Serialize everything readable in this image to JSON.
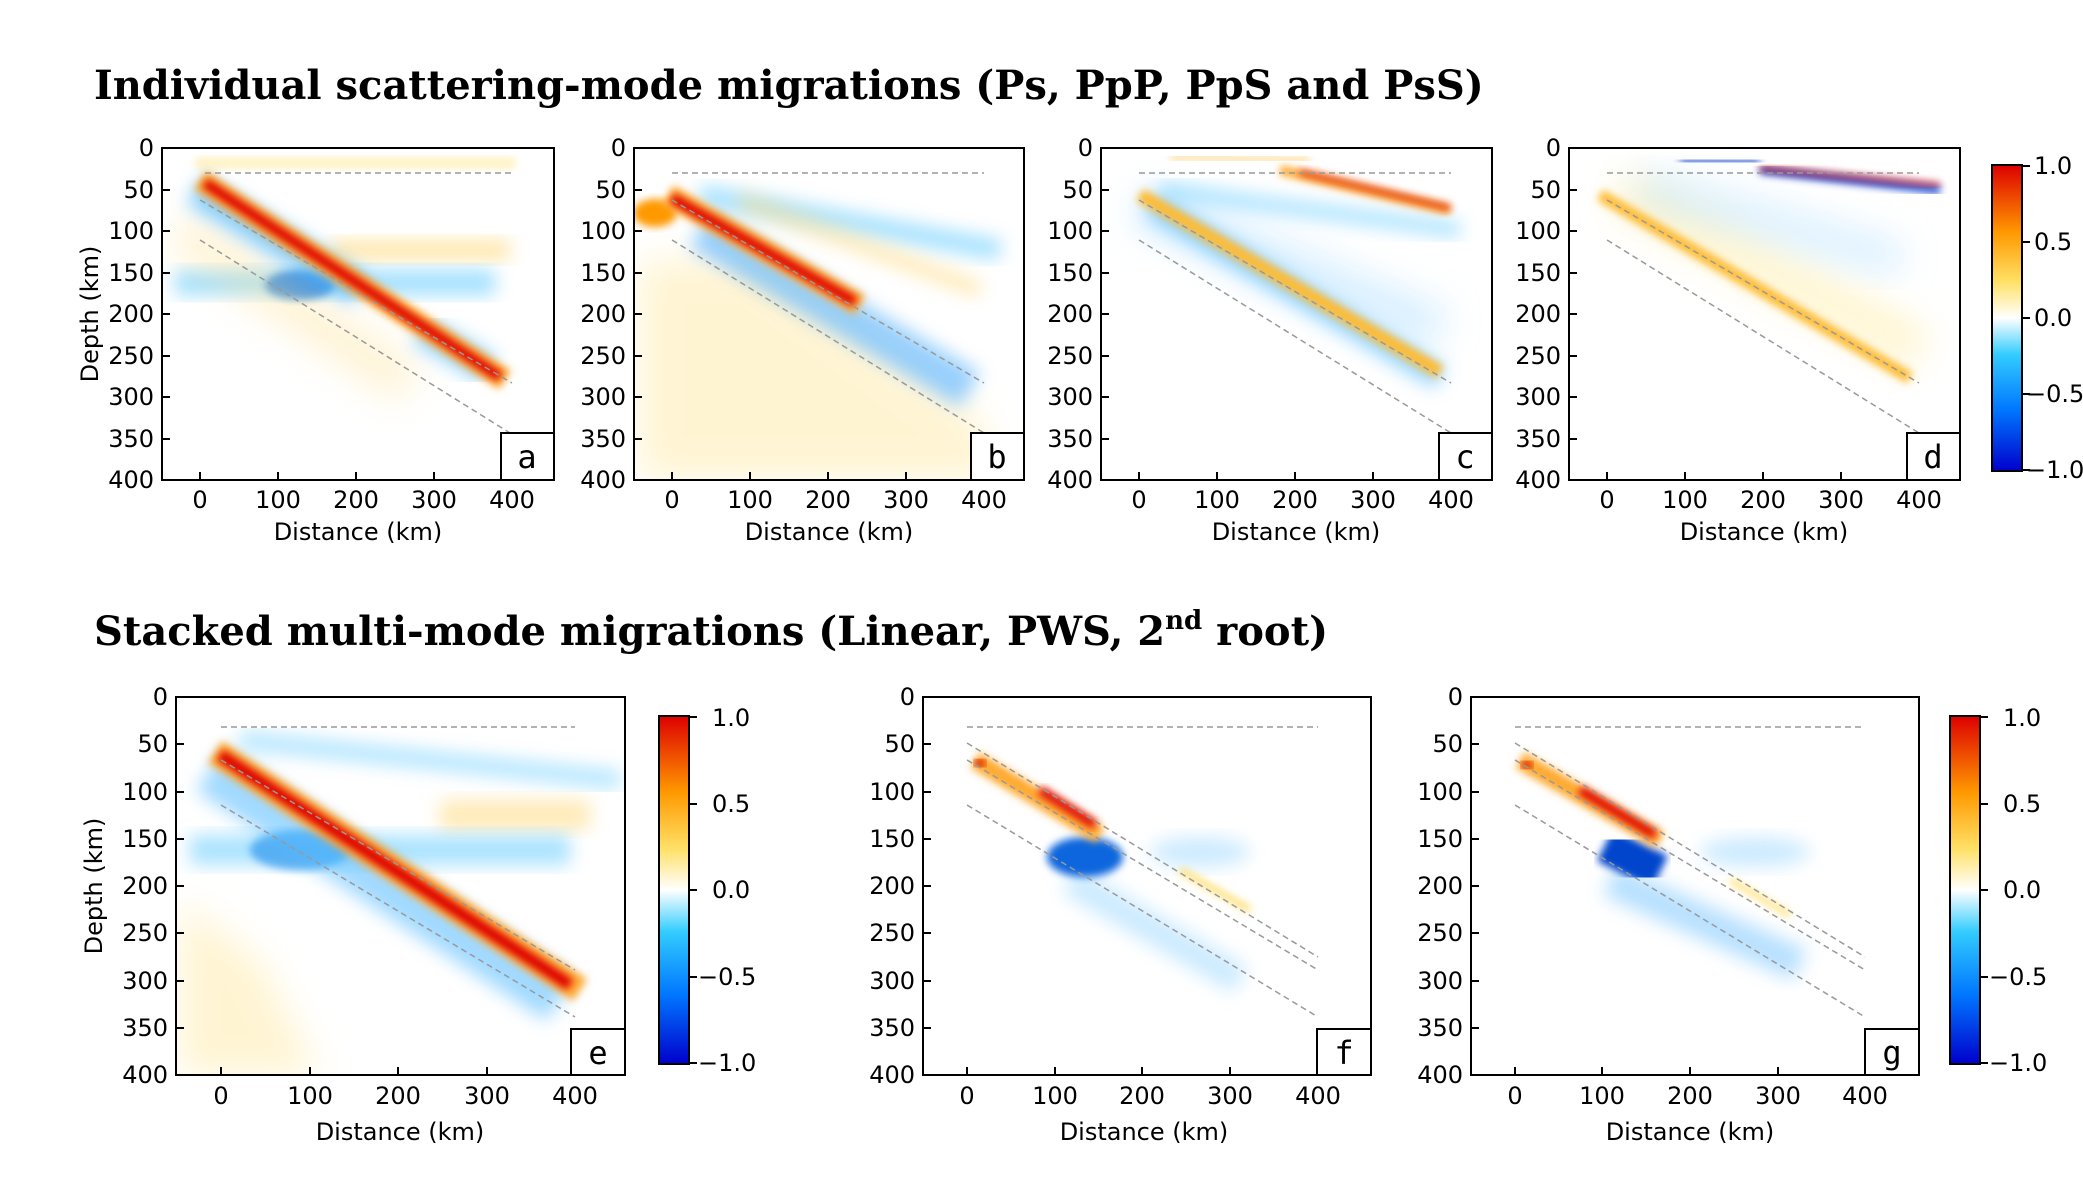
{
  "titles": {
    "top": "Individual scattering-mode migrations (Ps, PpP, PpS and PsS)",
    "bottom_pre": "Stacked multi-mode migrations (Linear, PWS, 2",
    "bottom_sup": "nd",
    "bottom_post": " root)"
  },
  "axis_labels": {
    "x": "Distance (km)",
    "y": "Depth (km)"
  },
  "colorbar": {
    "ticks": [
      "1.0",
      "0.5",
      "0.0",
      "−0.5",
      "−1.0"
    ],
    "range": [
      -1.0,
      1.0
    ],
    "colormap": [
      "#0000cc",
      "#0077ff",
      "#33ccff",
      "#ffffff",
      "#ffe066",
      "#ff9900",
      "#dd0000"
    ]
  },
  "chart_data": [
    {
      "type": "heatmap",
      "label": "a",
      "x_ticks": [
        "0",
        "100",
        "200",
        "300",
        "400"
      ],
      "y_ticks": [
        "0",
        "50",
        "100",
        "150",
        "200",
        "250",
        "300",
        "350",
        "400"
      ],
      "xlim": [
        -50,
        450
      ],
      "ylim": [
        400,
        0
      ],
      "xlabel": "Distance (km)",
      "ylabel": "Depth (km)"
    },
    {
      "type": "heatmap",
      "label": "b",
      "x_ticks": [
        "0",
        "100",
        "200",
        "300",
        "400"
      ],
      "y_ticks": [
        "0",
        "50",
        "100",
        "150",
        "200",
        "250",
        "300",
        "350",
        "400"
      ],
      "xlim": [
        -50,
        450
      ],
      "ylim": [
        400,
        0
      ],
      "xlabel": "Distance (km)",
      "ylabel": ""
    },
    {
      "type": "heatmap",
      "label": "c",
      "x_ticks": [
        "0",
        "100",
        "200",
        "300",
        "400"
      ],
      "y_ticks": [
        "0",
        "50",
        "100",
        "150",
        "200",
        "250",
        "300",
        "350",
        "400"
      ],
      "xlim": [
        -50,
        450
      ],
      "ylim": [
        400,
        0
      ],
      "xlabel": "Distance (km)",
      "ylabel": ""
    },
    {
      "type": "heatmap",
      "label": "d",
      "x_ticks": [
        "0",
        "100",
        "200",
        "300",
        "400"
      ],
      "y_ticks": [
        "0",
        "50",
        "100",
        "150",
        "200",
        "250",
        "300",
        "350",
        "400"
      ],
      "xlim": [
        -50,
        450
      ],
      "ylim": [
        400,
        0
      ],
      "xlabel": "Distance (km)",
      "ylabel": ""
    },
    {
      "type": "heatmap",
      "label": "e",
      "x_ticks": [
        "0",
        "100",
        "200",
        "300",
        "400"
      ],
      "y_ticks": [
        "0",
        "50",
        "100",
        "150",
        "200",
        "250",
        "300",
        "350",
        "400"
      ],
      "xlim": [
        -50,
        450
      ],
      "ylim": [
        400,
        0
      ],
      "xlabel": "Distance (km)",
      "ylabel": "Depth (km)"
    },
    {
      "type": "heatmap",
      "label": "f",
      "x_ticks": [
        "0",
        "100",
        "200",
        "300",
        "400"
      ],
      "y_ticks": [
        "0",
        "50",
        "100",
        "150",
        "200",
        "250",
        "300",
        "350",
        "400"
      ],
      "xlim": [
        -50,
        450
      ],
      "ylim": [
        400,
        0
      ],
      "xlabel": "Distance (km)",
      "ylabel": ""
    },
    {
      "type": "heatmap",
      "label": "g",
      "x_ticks": [
        "0",
        "100",
        "200",
        "300",
        "400"
      ],
      "y_ticks": [
        "0",
        "50",
        "100",
        "150",
        "200",
        "250",
        "300",
        "350",
        "400"
      ],
      "xlim": [
        -50,
        450
      ],
      "ylim": [
        400,
        0
      ],
      "xlabel": "Distance (km)",
      "ylabel": ""
    }
  ]
}
